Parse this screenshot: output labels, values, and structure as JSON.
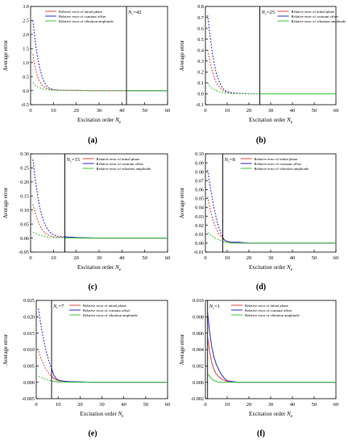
{
  "figure": {
    "legend_labels": [
      "Relative error of initial phase",
      "Relative error of constant offset",
      "Relative error of vibration amplitude"
    ],
    "colors": {
      "initial_phase": "#e8453c",
      "constant_offset": "#2b2bd6",
      "vibration_amplitude": "#3cc83c",
      "threshold_line": "#000000"
    }
  },
  "chart_data": [
    {
      "type": "line",
      "label": "(a)",
      "xlabel": "Excitation order",
      "xlabel_sub": "N",
      "xlabel_subscript": "e",
      "ylabel": "Average error",
      "xlim": [
        0,
        60
      ],
      "ylim": [
        -0.5,
        3.0
      ],
      "xticks": [
        0,
        10,
        20,
        30,
        40,
        50,
        60
      ],
      "yticks": [
        -0.5,
        0.0,
        0.5,
        1.0,
        1.5,
        2.0,
        2.5,
        3.0
      ],
      "ytick_labels": [
        "-0.5",
        "0.0",
        "0.5",
        "1.0",
        "1.5",
        "2.0",
        "2.5",
        "3.0"
      ],
      "threshold": {
        "x": 42,
        "label_main": "N",
        "label_sub": "c",
        "label_value": "=42"
      },
      "series": [
        {
          "name": "Relative error of initial phase",
          "x": [
            1,
            2,
            3,
            4,
            5,
            6,
            7,
            8,
            9,
            10,
            12,
            15,
            20,
            25,
            30,
            42,
            50,
            60
          ],
          "values": [
            1.3,
            0.8,
            0.5,
            0.32,
            0.2,
            0.13,
            0.09,
            0.06,
            0.04,
            0.03,
            0.02,
            0.01,
            0.01,
            0.0,
            0.0,
            0.0,
            0.0,
            0.0
          ]
        },
        {
          "name": "Relative error of constant offset",
          "x": [
            1,
            2,
            3,
            4,
            5,
            6,
            7,
            8,
            9,
            10,
            12,
            15,
            20,
            25,
            30,
            42,
            50,
            60
          ],
          "values": [
            2.5,
            1.75,
            1.2,
            0.8,
            0.5,
            0.3,
            0.18,
            0.1,
            0.06,
            0.04,
            0.02,
            0.01,
            0.01,
            0.0,
            0.0,
            0.0,
            0.0,
            0.0
          ]
        },
        {
          "name": "Relative error of vibration amplitude",
          "x": [
            1,
            2,
            3,
            4,
            5,
            6,
            7,
            8,
            9,
            10,
            12,
            15,
            20,
            25,
            30,
            42,
            50,
            60
          ],
          "values": [
            0.3,
            0.2,
            0.14,
            0.1,
            0.07,
            0.05,
            0.04,
            0.03,
            0.02,
            0.02,
            0.01,
            0.01,
            0.0,
            0.0,
            0.0,
            0.0,
            0.0,
            0.0
          ]
        }
      ]
    },
    {
      "type": "line",
      "label": "(b)",
      "xlabel": "Excitation order",
      "xlabel_sub": "N",
      "xlabel_subscript": "e",
      "ylabel": "Average error",
      "xlim": [
        0,
        60
      ],
      "ylim": [
        -0.1,
        0.8
      ],
      "xticks": [
        0,
        10,
        20,
        30,
        40,
        50,
        60
      ],
      "yticks": [
        -0.1,
        0.0,
        0.1,
        0.2,
        0.3,
        0.4,
        0.5,
        0.6,
        0.7,
        0.8
      ],
      "ytick_labels": [
        "-0.1",
        "0.0",
        "0.1",
        "0.2",
        "0.3",
        "0.4",
        "0.5",
        "0.6",
        "0.7",
        "0.8"
      ],
      "threshold": {
        "x": 25,
        "label_main": "N",
        "label_sub": "c",
        "label_value": "=25"
      },
      "series": [
        {
          "name": "Relative error of initial phase",
          "x": [
            1,
            2,
            3,
            4,
            5,
            6,
            7,
            8,
            9,
            10,
            12,
            15,
            20,
            25,
            30,
            40,
            50,
            60
          ],
          "values": [
            0.4,
            0.3,
            0.22,
            0.15,
            0.1,
            0.07,
            0.05,
            0.03,
            0.02,
            0.015,
            0.01,
            0.005,
            0.0,
            0.0,
            0.0,
            0.0,
            0.0,
            0.0
          ]
        },
        {
          "name": "Relative error of constant offset",
          "x": [
            1,
            2,
            3,
            4,
            5,
            6,
            7,
            8,
            9,
            10,
            12,
            15,
            20,
            25,
            30,
            40,
            50,
            60
          ],
          "values": [
            0.72,
            0.55,
            0.4,
            0.28,
            0.19,
            0.13,
            0.08,
            0.05,
            0.03,
            0.02,
            0.01,
            0.005,
            0.0,
            0.0,
            0.0,
            0.0,
            0.0,
            0.0
          ]
        },
        {
          "name": "Relative error of vibration amplitude",
          "x": [
            1,
            2,
            3,
            4,
            5,
            6,
            7,
            8,
            9,
            10,
            12,
            15,
            20,
            25,
            30,
            40,
            50,
            60
          ],
          "values": [
            0.1,
            0.07,
            0.05,
            0.04,
            0.03,
            0.02,
            0.015,
            0.01,
            0.008,
            0.005,
            0.003,
            0.002,
            0.0,
            0.0,
            0.0,
            0.0,
            0.0,
            0.0
          ]
        }
      ]
    },
    {
      "type": "line",
      "label": "(c)",
      "xlabel": "Excitation order",
      "xlabel_sub": "N",
      "xlabel_subscript": "e",
      "ylabel": "Average error",
      "xlim": [
        0,
        60
      ],
      "ylim": [
        -0.05,
        0.3
      ],
      "xticks": [
        0,
        10,
        20,
        30,
        40,
        50,
        60
      ],
      "yticks": [
        -0.05,
        0.0,
        0.05,
        0.1,
        0.15,
        0.2,
        0.25,
        0.3
      ],
      "ytick_labels": [
        "-0.05",
        "0.00",
        "0.05",
        "0.10",
        "0.15",
        "0.20",
        "0.25",
        "0.30"
      ],
      "threshold": {
        "x": 15,
        "label_main": "N",
        "label_sub": "c",
        "label_value": "=15"
      },
      "series": [
        {
          "name": "Relative error of initial phase",
          "x": [
            1,
            2,
            3,
            4,
            5,
            6,
            7,
            8,
            9,
            10,
            12,
            15,
            20,
            25,
            30,
            40,
            50,
            60
          ],
          "values": [
            0.12,
            0.09,
            0.065,
            0.045,
            0.03,
            0.02,
            0.014,
            0.01,
            0.007,
            0.005,
            0.003,
            0.002,
            0.001,
            0.0,
            0.0,
            0.0,
            0.0,
            0.0
          ]
        },
        {
          "name": "Relative error of constant offset",
          "x": [
            1,
            2,
            3,
            4,
            5,
            6,
            7,
            8,
            9,
            10,
            12,
            15,
            20,
            25,
            30,
            40,
            50,
            60
          ],
          "values": [
            0.28,
            0.21,
            0.155,
            0.11,
            0.078,
            0.054,
            0.037,
            0.025,
            0.017,
            0.012,
            0.007,
            0.004,
            0.002,
            0.001,
            0.0,
            0.0,
            0.0,
            0.0
          ]
        },
        {
          "name": "Relative error of vibration amplitude",
          "x": [
            1,
            2,
            3,
            4,
            5,
            6,
            7,
            8,
            9,
            10,
            12,
            15,
            20,
            25,
            30,
            40,
            50,
            60
          ],
          "values": [
            0.02,
            0.018,
            0.014,
            0.01,
            0.008,
            0.006,
            0.004,
            0.003,
            0.002,
            0.002,
            0.001,
            0.001,
            0.0,
            0.0,
            0.0,
            0.0,
            0.0,
            0.0
          ]
        }
      ]
    },
    {
      "type": "line",
      "label": "(d)",
      "xlabel": "Excitation order",
      "xlabel_sub": "N",
      "xlabel_subscript": "e",
      "ylabel": "Average error",
      "xlim": [
        0,
        60
      ],
      "ylim": [
        -0.01,
        0.1
      ],
      "xticks": [
        0,
        10,
        20,
        30,
        40,
        50,
        60
      ],
      "yticks": [
        -0.01,
        0.0,
        0.01,
        0.02,
        0.03,
        0.04,
        0.05,
        0.06,
        0.07,
        0.08,
        0.09,
        0.1
      ],
      "ytick_labels": [
        "-0.01",
        "0.00",
        "0.01",
        "0.02",
        "0.03",
        "0.04",
        "0.05",
        "0.06",
        "0.07",
        "0.08",
        "0.09",
        "0.10"
      ],
      "threshold": {
        "x": 8,
        "label_main": "N",
        "label_sub": "c",
        "label_value": "=8"
      },
      "series": [
        {
          "name": "Relative error of initial phase",
          "x": [
            1,
            2,
            3,
            4,
            5,
            6,
            7,
            8,
            9,
            10,
            12,
            15,
            20,
            25,
            30,
            40,
            50,
            60
          ],
          "values": [
            0.052,
            0.04,
            0.03,
            0.022,
            0.016,
            0.011,
            0.008,
            0.005,
            0.003,
            0.002,
            0.001,
            0.001,
            0.0,
            0.0,
            0.0,
            0.0,
            0.0,
            0.0
          ]
        },
        {
          "name": "Relative error of constant offset",
          "x": [
            1,
            2,
            3,
            4,
            5,
            6,
            7,
            8,
            9,
            10,
            12,
            15,
            20,
            25,
            30,
            40,
            50,
            60
          ],
          "values": [
            0.082,
            0.066,
            0.052,
            0.039,
            0.028,
            0.019,
            0.012,
            0.006,
            0.003,
            0.002,
            0.001,
            0.001,
            0.0,
            0.0,
            0.0,
            0.0,
            0.0,
            0.0
          ]
        },
        {
          "name": "Relative error of vibration amplitude",
          "x": [
            1,
            2,
            3,
            4,
            5,
            6,
            7,
            8,
            9,
            10,
            12,
            15,
            20,
            25,
            30,
            40,
            50,
            60
          ],
          "values": [
            0.012,
            0.01,
            0.008,
            0.006,
            0.005,
            0.004,
            0.003,
            0.002,
            0.001,
            0.001,
            0.0,
            0.0,
            0.0,
            0.0,
            0.0,
            0.0,
            0.0,
            0.0
          ]
        }
      ]
    },
    {
      "type": "line",
      "label": "(e)",
      "xlabel": "Excitation order",
      "xlabel_sub": "N",
      "xlabel_subscript": "e",
      "ylabel": "Average error",
      "xlim": [
        0,
        60
      ],
      "ylim": [
        -0.005,
        0.025
      ],
      "xticks": [
        0,
        10,
        20,
        30,
        40,
        50,
        60
      ],
      "yticks": [
        -0.005,
        0.0,
        0.005,
        0.01,
        0.015,
        0.02,
        0.025
      ],
      "ytick_labels": [
        "-0.005",
        "0.000",
        "0.005",
        "0.010",
        "0.015",
        "0.020",
        "0.025"
      ],
      "threshold": {
        "x": 7,
        "label_main": "N",
        "label_sub": "c",
        "label_value": "=7"
      },
      "series": [
        {
          "name": "Relative error of initial phase",
          "x": [
            1,
            2,
            3,
            4,
            5,
            6,
            7,
            8,
            9,
            10,
            12,
            15,
            20,
            25,
            30,
            40,
            50,
            60
          ],
          "values": [
            0.0095,
            0.0075,
            0.006,
            0.0045,
            0.0034,
            0.0025,
            0.0018,
            0.0012,
            0.0008,
            0.0005,
            0.0003,
            0.0002,
            0.0001,
            0.0,
            0.0,
            0.0,
            0.0,
            0.0
          ]
        },
        {
          "name": "Relative error of constant offset",
          "x": [
            1,
            2,
            3,
            4,
            5,
            6,
            7,
            8,
            9,
            10,
            12,
            15,
            20,
            25,
            30,
            40,
            50,
            60
          ],
          "values": [
            0.0225,
            0.018,
            0.0142,
            0.011,
            0.0082,
            0.006,
            0.0042,
            0.0022,
            0.0012,
            0.0007,
            0.0004,
            0.0002,
            0.0001,
            0.0,
            0.0,
            0.0,
            0.0,
            0.0
          ]
        },
        {
          "name": "Relative error of vibration amplitude",
          "x": [
            1,
            2,
            3,
            4,
            5,
            6,
            7,
            8,
            9,
            10,
            12,
            15,
            20,
            25,
            30,
            40,
            50,
            60
          ],
          "values": [
            0.0018,
            0.0016,
            0.0013,
            0.001,
            0.0008,
            0.0006,
            0.0004,
            0.0003,
            0.0002,
            0.0001,
            0.0001,
            0.0,
            0.0,
            0.0,
            0.0,
            0.0,
            0.0,
            0.0
          ]
        }
      ]
    },
    {
      "type": "line",
      "label": "(f)",
      "xlabel": "Excitation order",
      "xlabel_sub": "N",
      "xlabel_subscript": "e",
      "ylabel": "Average error",
      "xlim": [
        0,
        60
      ],
      "ylim": [
        -0.002,
        0.01
      ],
      "xticks": [
        0,
        10,
        20,
        30,
        40,
        50,
        60
      ],
      "yticks": [
        -0.002,
        0.0,
        0.002,
        0.004,
        0.006,
        0.008,
        0.01
      ],
      "ytick_labels": [
        "-0.002",
        "0.000",
        "0.002",
        "0.004",
        "0.006",
        "0.008",
        "0.010"
      ],
      "threshold": {
        "x": 1,
        "label_main": "N",
        "label_sub": "c",
        "label_value": "=1"
      },
      "series": [
        {
          "name": "Relative error of initial phase",
          "x": [
            1,
            2,
            3,
            4,
            5,
            6,
            7,
            8,
            9,
            10,
            12,
            15,
            20,
            25,
            30,
            40,
            50,
            60
          ],
          "values": [
            0.0055,
            0.0036,
            0.0023,
            0.0015,
            0.001,
            0.0007,
            0.0005,
            0.0003,
            0.0002,
            0.0001,
            0.0,
            0.0,
            0.0,
            0.0,
            0.0,
            0.0,
            0.0,
            0.0
          ]
        },
        {
          "name": "Relative error of constant offset",
          "x": [
            1,
            2,
            3,
            4,
            5,
            6,
            7,
            8,
            9,
            10,
            12,
            15,
            20,
            25,
            30,
            40,
            50,
            60
          ],
          "values": [
            0.0085,
            0.006,
            0.0042,
            0.003,
            0.0022,
            0.0016,
            0.0011,
            0.0007,
            0.0004,
            0.0002,
            0.0001,
            0.0,
            0.0,
            0.0,
            0.0,
            0.0,
            0.0,
            0.0
          ]
        },
        {
          "name": "Relative error of vibration amplitude",
          "x": [
            1,
            2,
            3,
            4,
            5,
            6,
            7,
            8,
            9,
            10,
            12,
            15,
            20,
            25,
            30,
            40,
            50,
            60
          ],
          "values": [
            0.001,
            0.0007,
            0.0004,
            0.0002,
            0.0001,
            0.0,
            0.0,
            0.0,
            0.0,
            0.0,
            0.0,
            0.0,
            0.0,
            0.0,
            0.0,
            0.0,
            0.0,
            0.0
          ]
        }
      ]
    }
  ]
}
